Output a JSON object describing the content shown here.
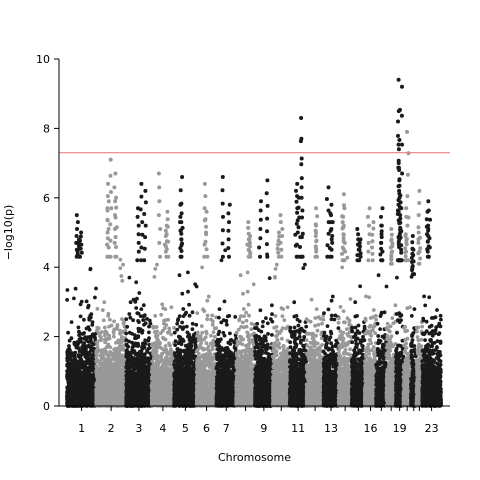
{
  "chart_data": {
    "type": "scatter",
    "xlabel": "Chromosome",
    "ylabel": "−log10(p)",
    "ylim": [
      0,
      10
    ],
    "yticks": [
      0,
      2,
      4,
      6,
      8,
      10
    ],
    "significance_line": {
      "y": 7.3,
      "color": "#e8837f"
    },
    "colors": {
      "odd": "#1a1a1a",
      "even": "#999999"
    },
    "grid": false,
    "chromosomes": [
      {
        "chr": 1,
        "label": "1",
        "bulk": 4.3,
        "peaks": [
          5.5,
          5.0,
          4.8
        ]
      },
      {
        "chr": 2,
        "label": "2",
        "bulk": 4.3,
        "peaks": [
          7.1,
          6.7,
          6.4,
          5.9,
          6.0
        ]
      },
      {
        "chr": 3,
        "label": "3",
        "bulk": 4.2,
        "peaks": [
          6.4,
          6.2,
          5.7
        ]
      },
      {
        "chr": 4,
        "label": "4",
        "bulk": 4.3,
        "peaks": [
          6.7,
          5.6,
          5.2
        ]
      },
      {
        "chr": 5,
        "label": "5",
        "bulk": 4.3,
        "peaks": [
          6.6,
          5.8,
          5.3
        ]
      },
      {
        "chr": 6,
        "label": "6",
        "bulk": 4.3,
        "peaks": [
          6.4,
          5.6
        ]
      },
      {
        "chr": 7,
        "label": "7",
        "bulk": 4.3,
        "peaks": [
          6.6,
          5.8
        ]
      },
      {
        "chr": 8,
        "label": "",
        "bulk": 4.3,
        "peaks": [
          5.3,
          4.9
        ]
      },
      {
        "chr": 9,
        "label": "9",
        "bulk": 4.3,
        "peaks": [
          6.5,
          5.9
        ]
      },
      {
        "chr": 10,
        "label": "",
        "bulk": 4.3,
        "peaks": [
          5.5,
          5.0
        ]
      },
      {
        "chr": 11,
        "label": "11",
        "bulk": 4.3,
        "peaks": [
          8.3,
          7.7,
          6.4,
          6.0,
          6.2
        ]
      },
      {
        "chr": 12,
        "label": "",
        "bulk": 4.3,
        "peaks": [
          5.7,
          5.2
        ]
      },
      {
        "chr": 13,
        "label": "13",
        "bulk": 4.3,
        "peaks": [
          6.3,
          5.8,
          5.5
        ]
      },
      {
        "chr": 14,
        "label": "",
        "bulk": 4.2,
        "peaks": [
          6.1,
          5.7,
          5.3
        ]
      },
      {
        "chr": 15,
        "label": "",
        "bulk": 4.2,
        "peaks": [
          5.1,
          4.8
        ]
      },
      {
        "chr": 16,
        "label": "16",
        "bulk": 4.2,
        "peaks": [
          5.7,
          5.3
        ]
      },
      {
        "chr": 17,
        "label": "",
        "bulk": 4.2,
        "peaks": [
          5.7,
          5.2
        ]
      },
      {
        "chr": 18,
        "label": "",
        "bulk": 4.1,
        "peaks": [
          5.1,
          4.8
        ]
      },
      {
        "chr": 19,
        "label": "19",
        "bulk": 4.2,
        "peaks": [
          9.4,
          9.2,
          8.5,
          8.2,
          7.4,
          7.0,
          6.5,
          6.0,
          5.5
        ]
      },
      {
        "chr": 20,
        "label": "",
        "bulk": 4.2,
        "peaks": [
          7.9,
          5.7,
          4.9
        ]
      },
      {
        "chr": 21,
        "label": "",
        "bulk": 3.8,
        "peaks": [
          4.9,
          4.5
        ]
      },
      {
        "chr": 22,
        "label": "",
        "bulk": 4.1,
        "peaks": [
          6.2,
          5.0
        ]
      },
      {
        "chr": 23,
        "label": "23",
        "bulk": 4.3,
        "peaks": [
          5.9,
          5.6,
          5.2
        ]
      }
    ]
  }
}
